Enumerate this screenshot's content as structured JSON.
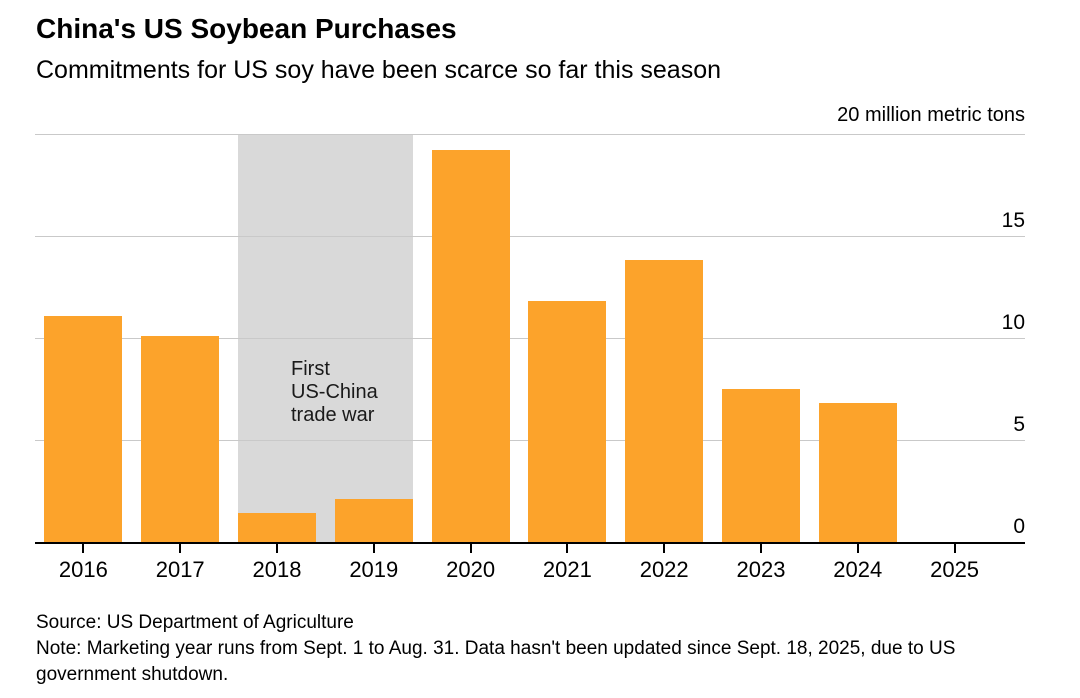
{
  "chart_data": {
    "type": "bar",
    "title": "China's US Soybean Purchases",
    "subtitle": "Commitments for US soy have been scarce so far this season",
    "unit_label": "20 million metric tons",
    "ylabel": "million metric tons",
    "categories": [
      "2016",
      "2017",
      "2018",
      "2019",
      "2020",
      "2021",
      "2022",
      "2023",
      "2024",
      "2025"
    ],
    "values": [
      11.1,
      10.1,
      1.4,
      2.1,
      19.2,
      11.8,
      13.8,
      7.5,
      6.8,
      0
    ],
    "ylim": [
      0,
      20
    ],
    "yticks": [
      0,
      5,
      10,
      15
    ],
    "grid": "horizontal",
    "legend": "none",
    "bar_color": "#FCA32B",
    "gridline_color": "#C9C9C9",
    "axis_color": "#000000",
    "annotation": {
      "text_lines": [
        "First",
        "US-China",
        "trade war"
      ],
      "band_categories": [
        "2018",
        "2019"
      ],
      "band_color": "#D9D9D9"
    }
  },
  "footer": {
    "source": "Source: US Department of Agriculture",
    "note": "Note: Marketing year runs from Sept. 1 to Aug. 31. Data hasn't been updated since Sept. 18, 2025, due to US government shutdown."
  }
}
